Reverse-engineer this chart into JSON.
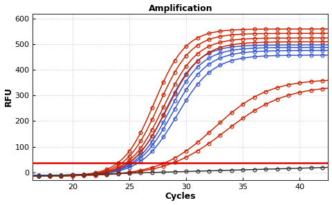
{
  "title": "Amplification",
  "xlabel": "Cycles",
  "ylabel": "RFU",
  "xlim": [
    16.5,
    42.5
  ],
  "ylim": [
    -30,
    620
  ],
  "xticks": [
    20,
    25,
    30,
    35,
    40
  ],
  "yticks": [
    0,
    100,
    200,
    300,
    400,
    500,
    600
  ],
  "threshold_y": 38,
  "threshold_color": "#dd0000",
  "bg_color": "#ffffff",
  "grid_color": "#999999",
  "blue_lines": [
    {
      "L": 510,
      "k": 0.7,
      "x0": 28.2,
      "base": -12
    },
    {
      "L": 500,
      "k": 0.68,
      "x0": 28.5,
      "base": -12
    },
    {
      "L": 488,
      "k": 0.65,
      "x0": 28.8,
      "base": -12
    },
    {
      "L": 470,
      "k": 0.63,
      "x0": 29.2,
      "base": -12
    }
  ],
  "red_lines_high": [
    {
      "L": 575,
      "k": 0.72,
      "x0": 27.2,
      "base": -15
    },
    {
      "L": 558,
      "k": 0.7,
      "x0": 27.6,
      "base": -15
    },
    {
      "L": 540,
      "k": 0.68,
      "x0": 28.0,
      "base": -15
    },
    {
      "L": 525,
      "k": 0.66,
      "x0": 28.3,
      "base": -15
    }
  ],
  "red_lines_low": [
    {
      "L": 380,
      "k": 0.42,
      "x0": 32.5,
      "base": -15
    },
    {
      "L": 355,
      "k": 0.38,
      "x0": 33.5,
      "base": -15
    }
  ],
  "black_base": -15,
  "black_slope": 1.3,
  "black_start": 16,
  "blue_color": "#3355cc",
  "red_color": "#cc2200",
  "black_color": "#333333",
  "marker_size": 3.5,
  "line_width": 1.1
}
